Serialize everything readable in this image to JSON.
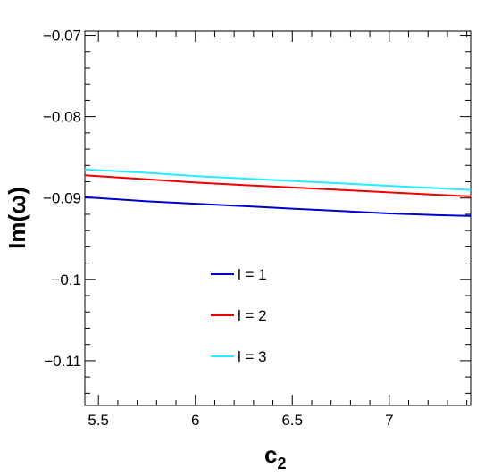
{
  "chart_data": {
    "type": "line",
    "xlabel": "c",
    "xlabel_sub": "2",
    "ylabel": "Im(ω)",
    "xlim": [
      5.43,
      7.42
    ],
    "ylim": [
      -0.1155,
      -0.0695
    ],
    "x_ticks": [
      5.5,
      6,
      6.5,
      7
    ],
    "x_tick_labels": [
      "5.5",
      "6",
      "6.5",
      "7"
    ],
    "y_ticks": [
      -0.07,
      -0.08,
      -0.09,
      -0.1,
      -0.11
    ],
    "y_tick_labels": [
      "−0.07",
      "−0.08",
      "−0.09",
      "−0.1",
      "−0.11"
    ],
    "grid": false,
    "legend_position": "lower-center",
    "series": [
      {
        "name": "l = 1",
        "color": "#0000cc",
        "x": [
          5.43,
          5.75,
          6.0,
          6.25,
          6.5,
          6.75,
          7.0,
          7.25,
          7.42
        ],
        "y": [
          -0.0899,
          -0.0904,
          -0.0907,
          -0.091,
          -0.0913,
          -0.0916,
          -0.0919,
          -0.0921,
          -0.0922
        ]
      },
      {
        "name": "l = 2",
        "color": "#ee0000",
        "x": [
          5.43,
          5.75,
          6.0,
          6.25,
          6.5,
          6.75,
          7.0,
          7.25,
          7.42
        ],
        "y": [
          -0.0872,
          -0.0877,
          -0.0881,
          -0.0884,
          -0.0887,
          -0.089,
          -0.0893,
          -0.0896,
          -0.0898
        ]
      },
      {
        "name": "l = 3",
        "color": "#22eeff",
        "x": [
          5.43,
          5.75,
          6.0,
          6.25,
          6.5,
          6.75,
          7.0,
          7.25,
          7.42
        ],
        "y": [
          -0.0865,
          -0.0869,
          -0.0873,
          -0.0876,
          -0.0879,
          -0.0882,
          -0.0885,
          -0.0888,
          -0.089
        ]
      }
    ]
  }
}
